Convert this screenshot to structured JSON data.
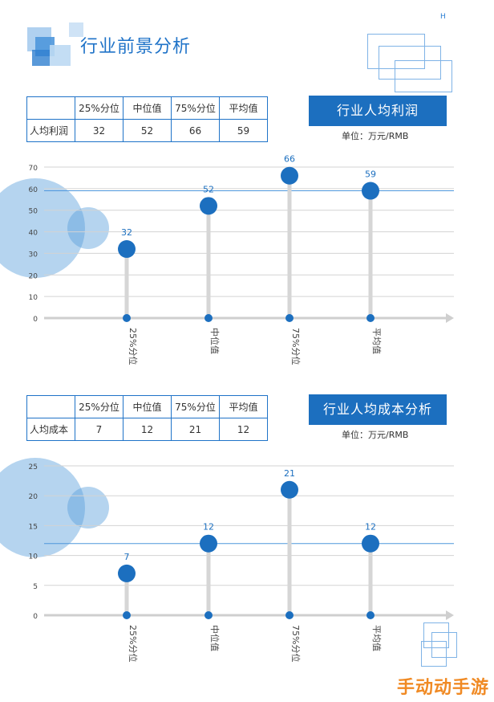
{
  "header": {
    "title": "行业前景分析",
    "corner_mark": "H"
  },
  "profit": {
    "banner": "行业人均利润",
    "unit": "单位：万元/RMB",
    "table": {
      "columns": [
        "",
        "25%分位",
        "中位值",
        "75%分位",
        "平均值"
      ],
      "row_label": "人均利润",
      "values": [
        "32",
        "52",
        "66",
        "59"
      ]
    }
  },
  "cost": {
    "banner": "行业人均成本分析",
    "unit": "单位：万元/RMB",
    "table": {
      "columns": [
        "",
        "25%分位",
        "中位值",
        "75%分位",
        "平均值"
      ],
      "row_label": "人均成本",
      "values": [
        "7",
        "12",
        "21",
        "12"
      ]
    }
  },
  "chart_data": [
    {
      "type": "scatter",
      "title": "",
      "categories": [
        "25%分位",
        "中位值",
        "75%分位",
        "平均值"
      ],
      "values": [
        32,
        52,
        66,
        59
      ],
      "yticks": [
        0,
        10,
        20,
        30,
        40,
        50,
        60,
        70
      ],
      "ylim": [
        0,
        70
      ],
      "reference_line": 59,
      "grid": true,
      "color": "#1c6fbf"
    },
    {
      "type": "scatter",
      "title": "",
      "categories": [
        "25%分位",
        "中位值",
        "75%分位",
        "平均值"
      ],
      "values": [
        7,
        12,
        21,
        12
      ],
      "yticks": [
        0,
        5,
        10,
        15,
        20,
        25
      ],
      "ylim": [
        0,
        25
      ],
      "reference_line": 12,
      "grid": true,
      "color": "#1c6fbf"
    }
  ],
  "watermark": "手动动手游"
}
